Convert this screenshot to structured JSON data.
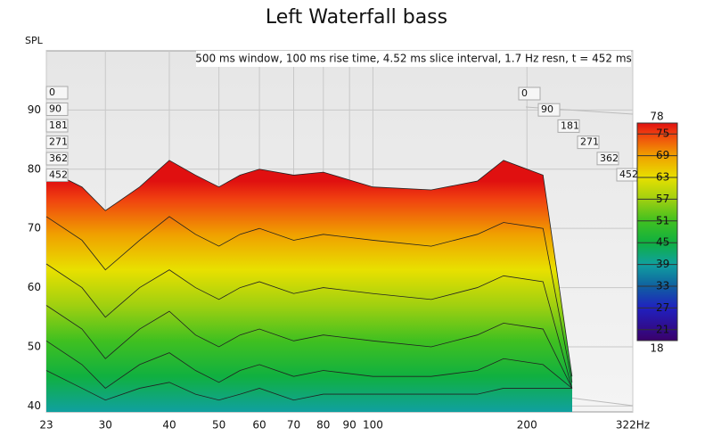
{
  "chart_data": {
    "type": "waterfall",
    "title": "Left Waterfall bass",
    "annotation": "500 ms window, 100 ms rise time, 4.52 ms slice interval, 1.7 Hz resn, t = 452 ms",
    "y_label": "SPL",
    "log_x": true,
    "grid": true,
    "xlim": [
      23,
      322
    ],
    "xticks": [
      23,
      30,
      40,
      50,
      60,
      70,
      80,
      90,
      100,
      200,
      {
        "value": 322,
        "label": "322Hz"
      }
    ],
    "ylim": [
      39,
      100
    ],
    "yticks": [
      40,
      50,
      60,
      70,
      80,
      90
    ],
    "x": [
      23,
      27,
      30,
      35,
      40,
      45,
      50,
      55,
      60,
      70,
      80,
      100,
      130,
      160,
      180,
      215,
      245
    ],
    "series": [
      {
        "name": "0",
        "values": [
          80,
          77,
          73,
          77,
          81.5,
          79,
          77,
          79,
          80,
          79,
          79.5,
          77,
          76.5,
          78,
          81.5,
          79,
          45
        ]
      },
      {
        "name": "90",
        "values": [
          72,
          68,
          63,
          68,
          72,
          69,
          67,
          69,
          70,
          68,
          69,
          68,
          67,
          69,
          71,
          70,
          44
        ]
      },
      {
        "name": "181",
        "values": [
          64,
          60,
          55,
          60,
          63,
          60,
          58,
          60,
          61,
          59,
          60,
          59,
          58,
          60,
          62,
          61,
          43
        ]
      },
      {
        "name": "271",
        "values": [
          57,
          53,
          48,
          53,
          56,
          52,
          50,
          52,
          53,
          51,
          52,
          51,
          50,
          52,
          54,
          53,
          43
        ]
      },
      {
        "name": "362",
        "values": [
          51,
          47,
          43,
          47,
          49,
          46,
          44,
          46,
          47,
          45,
          46,
          45,
          45,
          46,
          48,
          47,
          43
        ]
      },
      {
        "name": "452",
        "values": [
          46,
          43,
          41,
          43,
          44,
          42,
          41,
          42,
          43,
          41,
          42,
          42,
          42,
          42,
          43,
          43,
          43
        ]
      }
    ],
    "colorbar": {
      "lim": [
        18,
        78
      ],
      "ticks": [
        21,
        27,
        33,
        39,
        45,
        51,
        57,
        63,
        69,
        75
      ],
      "stops": [
        18,
        27,
        33,
        39,
        45,
        51,
        57,
        63,
        69,
        75,
        78
      ],
      "colors": [
        "#3a006a",
        "#2020c0",
        "#1060a0",
        "#10a0a0",
        "#10b040",
        "#40c020",
        "#a0d010",
        "#e8e000",
        "#f0a000",
        "#f04010",
        "#e01010"
      ]
    }
  }
}
